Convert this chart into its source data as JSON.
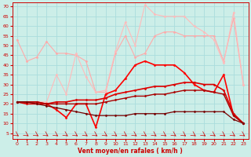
{
  "bg_color": "#cceee8",
  "grid_color": "#aadddd",
  "xlabel": "Vent moyen/en rafales ( km/h )",
  "xlabel_color": "#cc0000",
  "tick_color": "#cc0000",
  "x_ticks": [
    0,
    1,
    2,
    3,
    4,
    5,
    6,
    7,
    8,
    9,
    10,
    11,
    12,
    13,
    14,
    15,
    16,
    17,
    18,
    19,
    20,
    21,
    22,
    23
  ],
  "y_ticks": [
    5,
    10,
    15,
    20,
    25,
    30,
    35,
    40,
    45,
    50,
    55,
    60,
    65,
    70
  ],
  "ylim": [
    2,
    72
  ],
  "xlim": [
    -0.5,
    23.5
  ],
  "lines": [
    {
      "x": [
        0,
        1,
        2,
        3,
        4,
        5,
        6,
        7,
        8,
        9,
        10,
        11,
        12,
        13,
        14,
        15,
        16,
        17,
        18,
        19,
        20,
        21,
        22,
        23
      ],
      "y": [
        53,
        42,
        44,
        52,
        46,
        46,
        45,
        42,
        26,
        26,
        46,
        55,
        44,
        46,
        55,
        57,
        57,
        55,
        55,
        55,
        55,
        42,
        64,
        30
      ],
      "color": "#ffaaaa",
      "lw": 0.8,
      "marker": "D",
      "ms": 1.5
    },
    {
      "x": [
        0,
        1,
        2,
        3,
        4,
        5,
        6,
        7,
        8,
        9,
        10,
        11,
        12,
        13,
        14,
        15,
        16,
        17,
        18,
        19,
        20,
        21,
        22,
        23
      ],
      "y": [
        21,
        21,
        21,
        21,
        35,
        25,
        46,
        34,
        26,
        27,
        47,
        62,
        50,
        71,
        66,
        65,
        65,
        65,
        60,
        57,
        53,
        41,
        67,
        30
      ],
      "color": "#ffbbbb",
      "lw": 0.8,
      "marker": "D",
      "ms": 1.5
    },
    {
      "x": [
        0,
        1,
        2,
        3,
        4,
        5,
        6,
        7,
        8,
        9,
        10,
        11,
        12,
        13,
        14,
        15,
        16,
        17,
        18,
        19,
        20,
        21,
        22,
        23
      ],
      "y": [
        21,
        21,
        21,
        20,
        17,
        13,
        20,
        20,
        8,
        25,
        27,
        33,
        40,
        42,
        40,
        40,
        40,
        36,
        30,
        27,
        26,
        35,
        14,
        10
      ],
      "color": "#ff0000",
      "lw": 1.2,
      "marker": "D",
      "ms": 1.5
    },
    {
      "x": [
        0,
        1,
        2,
        3,
        4,
        5,
        6,
        7,
        8,
        9,
        10,
        11,
        12,
        13,
        14,
        15,
        16,
        17,
        18,
        19,
        20,
        21,
        22,
        23
      ],
      "y": [
        21,
        20,
        20,
        20,
        21,
        21,
        22,
        22,
        22,
        23,
        25,
        26,
        27,
        28,
        29,
        29,
        30,
        31,
        31,
        30,
        30,
        27,
        15,
        10
      ],
      "color": "#dd0000",
      "lw": 1.2,
      "marker": "D",
      "ms": 1.5
    },
    {
      "x": [
        0,
        1,
        2,
        3,
        4,
        5,
        6,
        7,
        8,
        9,
        10,
        11,
        12,
        13,
        14,
        15,
        16,
        17,
        18,
        19,
        20,
        21,
        22,
        23
      ],
      "y": [
        21,
        21,
        21,
        20,
        20,
        20,
        20,
        20,
        20,
        21,
        22,
        23,
        24,
        24,
        25,
        25,
        26,
        27,
        27,
        27,
        26,
        25,
        14,
        10
      ],
      "color": "#aa0000",
      "lw": 1.0,
      "marker": "D",
      "ms": 1.5
    },
    {
      "x": [
        0,
        1,
        2,
        3,
        4,
        5,
        6,
        7,
        8,
        9,
        10,
        11,
        12,
        13,
        14,
        15,
        16,
        17,
        18,
        19,
        20,
        21,
        22,
        23
      ],
      "y": [
        21,
        21,
        20,
        19,
        18,
        17,
        16,
        15,
        14,
        14,
        14,
        14,
        15,
        15,
        15,
        15,
        16,
        16,
        16,
        16,
        16,
        16,
        12,
        10
      ],
      "color": "#770000",
      "lw": 0.9,
      "marker": "D",
      "ms": 1.5
    }
  ]
}
